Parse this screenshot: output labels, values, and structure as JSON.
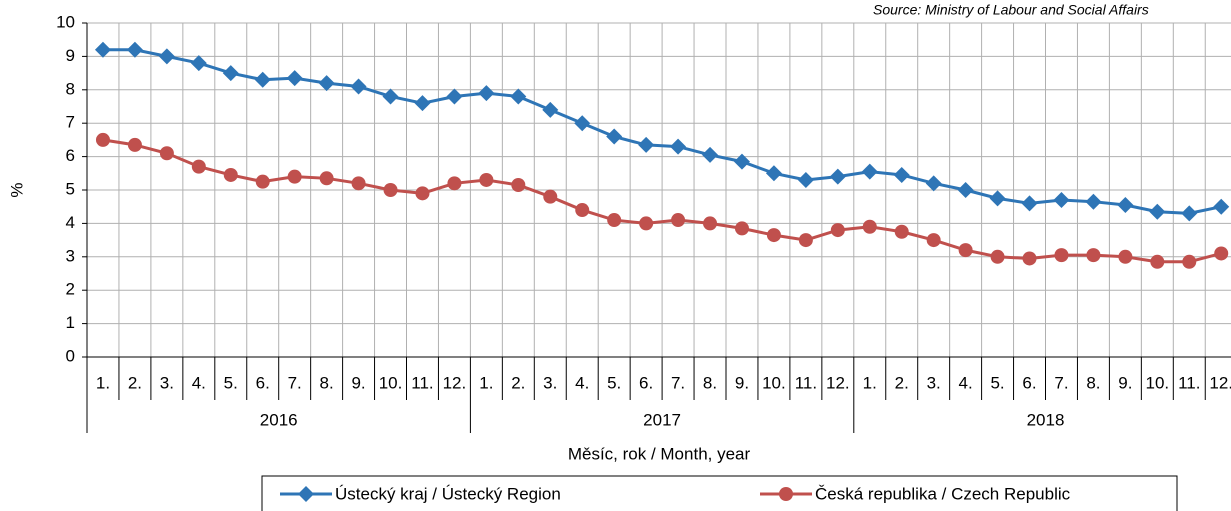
{
  "chart_data": {
    "type": "line",
    "source": "Source: Ministry of Labour and Social Affairs",
    "ylabel": "%",
    "xlabel": "Měsíc, rok / Month, year",
    "categories": [
      "1.",
      "2.",
      "3.",
      "4.",
      "5.",
      "6.",
      "7.",
      "8.",
      "9.",
      "10.",
      "11.",
      "12.",
      "1.",
      "2.",
      "3.",
      "4.",
      "5.",
      "6.",
      "7.",
      "8.",
      "9.",
      "10.",
      "11.",
      "12.",
      "1.",
      "2.",
      "3.",
      "4.",
      "5.",
      "6.",
      "7.",
      "8.",
      "9.",
      "10.",
      "11.",
      "12."
    ],
    "year_groups": [
      "2016",
      "2017",
      "2018"
    ],
    "ylim": [
      0,
      10
    ],
    "yticks": [
      0,
      1,
      2,
      3,
      4,
      5,
      6,
      7,
      8,
      9,
      10
    ],
    "grid": true,
    "series": [
      {
        "name": "Ústecký kraj / Ústecký Region",
        "color": "#2e75b6",
        "marker": "diamond",
        "values": [
          9.2,
          9.2,
          9.0,
          8.8,
          8.5,
          8.3,
          8.35,
          8.2,
          8.1,
          7.8,
          7.6,
          7.8,
          7.9,
          7.8,
          7.4,
          7.0,
          6.6,
          6.35,
          6.3,
          6.05,
          5.85,
          5.5,
          5.3,
          5.4,
          5.55,
          5.45,
          5.2,
          5.0,
          4.75,
          4.6,
          4.7,
          4.65,
          4.55,
          4.35,
          4.3,
          4.5
        ]
      },
      {
        "name": "Česká republika / Czech Republic",
        "color": "#c0504d",
        "marker": "circle",
        "values": [
          6.5,
          6.35,
          6.1,
          5.7,
          5.45,
          5.25,
          5.4,
          5.35,
          5.2,
          5.0,
          4.9,
          5.2,
          5.3,
          5.15,
          4.8,
          4.4,
          4.1,
          4.0,
          4.1,
          4.0,
          3.85,
          3.65,
          3.5,
          3.8,
          3.9,
          3.75,
          3.5,
          3.2,
          3.0,
          2.95,
          3.05,
          3.05,
          3.0,
          2.85,
          2.85,
          3.1
        ]
      }
    ]
  }
}
